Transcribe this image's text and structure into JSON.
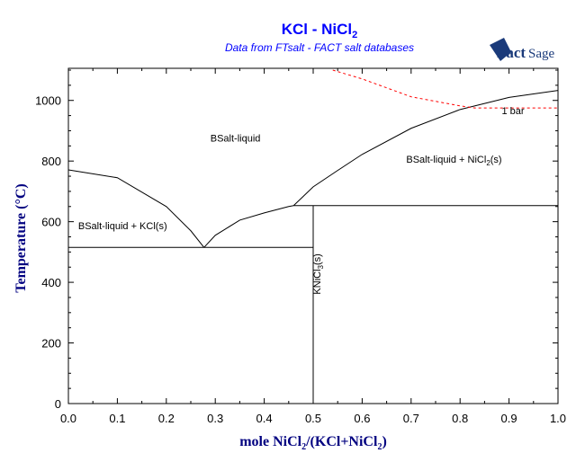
{
  "chart_data": {
    "type": "line",
    "title": "KCl - NiCl2",
    "title_main": "KCl - NiCl",
    "title_sub": "2",
    "subtitle": "Data from FTsalt - FACT salt databases",
    "logo": "FactSage",
    "xlabel": "mole NiCl2/(KCl+NiCl2)",
    "ylabel": "Temperature (°C)",
    "xlim": [
      0,
      1
    ],
    "ylim": [
      0,
      1100
    ],
    "xticks": [
      "0.0",
      "0.1",
      "0.2",
      "0.3",
      "0.4",
      "0.5",
      "0.6",
      "0.7",
      "0.8",
      "0.9",
      "1.0"
    ],
    "yticks": [
      "0",
      "200",
      "400",
      "600",
      "800",
      "1000"
    ],
    "series": [
      {
        "name": "KCl liquidus",
        "color": "#000000",
        "style": "solid",
        "points": [
          [
            0,
            771
          ],
          [
            0.1,
            745
          ],
          [
            0.2,
            650
          ],
          [
            0.25,
            570
          ],
          [
            0.277,
            515
          ]
        ]
      },
      {
        "name": "KNiCl3 liquidus",
        "color": "#000000",
        "style": "solid",
        "points": [
          [
            0.277,
            515
          ],
          [
            0.3,
            555
          ],
          [
            0.35,
            605
          ],
          [
            0.4,
            629
          ],
          [
            0.45,
            650
          ],
          [
            0.46,
            653
          ]
        ]
      },
      {
        "name": "NiCl2 liquidus",
        "color": "#000000",
        "style": "solid",
        "points": [
          [
            0.46,
            653
          ],
          [
            0.5,
            715
          ],
          [
            0.55,
            769
          ],
          [
            0.6,
            822
          ],
          [
            0.7,
            908
          ],
          [
            0.8,
            970
          ],
          [
            0.9,
            1010
          ],
          [
            1.0,
            1033
          ]
        ]
      },
      {
        "name": "eutectic line",
        "color": "#000000",
        "style": "solid",
        "points": [
          [
            0,
            515
          ],
          [
            0.5,
            515
          ]
        ]
      },
      {
        "name": "peritectic line",
        "color": "#000000",
        "style": "solid",
        "points": [
          [
            0.46,
            653
          ],
          [
            1.0,
            653
          ]
        ]
      },
      {
        "name": "KNiCl3 compound",
        "color": "#000000",
        "style": "solid",
        "points": [
          [
            0.5,
            0
          ],
          [
            0.5,
            653
          ]
        ]
      },
      {
        "name": "1 bar",
        "color": "#ff0000",
        "style": "dashed",
        "points": [
          [
            0.54,
            1100
          ],
          [
            0.6,
            1071
          ],
          [
            0.7,
            1012
          ],
          [
            0.8,
            982
          ],
          [
            0.83,
            975
          ],
          [
            1.0,
            975
          ]
        ]
      }
    ],
    "annotations": [
      {
        "text": "BSalt-liquid",
        "x": 0.29,
        "y": 865
      },
      {
        "text": "BSalt-liquid + KCl(s)",
        "x": 0.02,
        "y": 575
      },
      {
        "text": "BSalt-liquid + NiCl2(s)",
        "x": 0.69,
        "y": 795
      },
      {
        "text": "KNiCl3(s)",
        "x": 0.515,
        "y": 360
      },
      {
        "text": "1 bar",
        "x": 0.885,
        "y": 955
      }
    ]
  }
}
